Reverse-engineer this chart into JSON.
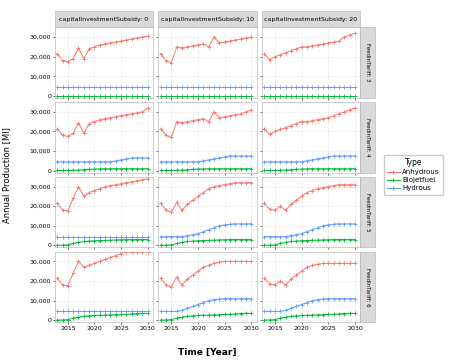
{
  "years": [
    2013,
    2014,
    2015,
    2016,
    2017,
    2018,
    2019,
    2020,
    2021,
    2022,
    2023,
    2024,
    2025,
    2026,
    2027,
    2028,
    2029,
    2030
  ],
  "col_labels": [
    "capitalInvestmentSubsidy: 0",
    "capitalInvestmentSubsidy: 10",
    "capitalInvestmentSubsidy: 20"
  ],
  "row_labels": [
    "FeedinTariff: 3",
    "FeedinTariff: 4",
    "FeedinTariff: 5",
    "FeedinTariff: 6"
  ],
  "type_colors": {
    "Anhydrous": "#f8766d",
    "Biojetfuel": "#00ba38",
    "Hydrous": "#619cff"
  },
  "xlabel": "Time [Year]",
  "ylabel": "Annual Production [Ml]",
  "data": {
    "row0": {
      "col0": {
        "Anhydrous": [
          21500,
          18000,
          17500,
          19000,
          24500,
          19000,
          24000,
          25000,
          26000,
          26500,
          27000,
          27500,
          28000,
          28500,
          29000,
          29500,
          30000,
          30500
        ],
        "Biojetfuel": [
          100,
          100,
          100,
          100,
          100,
          100,
          100,
          100,
          100,
          100,
          100,
          100,
          100,
          100,
          100,
          100,
          100,
          100
        ],
        "Hydrous": [
          4500,
          4500,
          4500,
          4500,
          4500,
          4500,
          4500,
          4500,
          4500,
          4500,
          4500,
          4500,
          4500,
          4500,
          4500,
          4500,
          4500,
          4500
        ]
      },
      "col1": {
        "Anhydrous": [
          21500,
          18000,
          17000,
          25000,
          24500,
          25000,
          25500,
          26000,
          26500,
          25000,
          30000,
          27000,
          27500,
          28000,
          28500,
          29000,
          29500,
          30000
        ],
        "Biojetfuel": [
          100,
          100,
          100,
          100,
          100,
          100,
          100,
          100,
          100,
          100,
          100,
          100,
          100,
          100,
          100,
          100,
          100,
          100
        ],
        "Hydrous": [
          4500,
          4500,
          4500,
          4500,
          4500,
          4500,
          4500,
          4500,
          4500,
          4500,
          4500,
          4500,
          4500,
          4500,
          4500,
          4500,
          4500,
          4500
        ]
      },
      "col2": {
        "Anhydrous": [
          21500,
          18500,
          20000,
          21000,
          22000,
          23000,
          24000,
          25000,
          25000,
          25500,
          26000,
          26500,
          27000,
          27500,
          28000,
          30000,
          31000,
          32000
        ],
        "Biojetfuel": [
          100,
          100,
          100,
          100,
          100,
          100,
          100,
          100,
          100,
          100,
          100,
          100,
          100,
          100,
          100,
          100,
          100,
          100
        ],
        "Hydrous": [
          4500,
          4500,
          4500,
          4500,
          4500,
          4500,
          4500,
          4500,
          4500,
          4500,
          4500,
          4500,
          4500,
          4500,
          4500,
          4500,
          4500,
          4500
        ]
      }
    },
    "row1": {
      "col0": {
        "Anhydrous": [
          21500,
          18000,
          17500,
          19000,
          24500,
          19000,
          24000,
          25000,
          26000,
          26500,
          27000,
          27500,
          28000,
          28500,
          29000,
          29500,
          30000,
          32000
        ],
        "Biojetfuel": [
          100,
          100,
          100,
          200,
          300,
          500,
          700,
          800,
          900,
          1000,
          1000,
          1000,
          1000,
          1000,
          1000,
          1000,
          1000,
          1000
        ],
        "Hydrous": [
          4500,
          4500,
          4500,
          4500,
          4500,
          4500,
          4500,
          4500,
          4500,
          4500,
          4500,
          5000,
          5500,
          6000,
          6500,
          6500,
          6500,
          6500
        ]
      },
      "col1": {
        "Anhydrous": [
          21500,
          18000,
          17000,
          25000,
          24500,
          25000,
          25500,
          26000,
          26500,
          25000,
          30000,
          27000,
          27500,
          28000,
          28500,
          29000,
          30000,
          31000
        ],
        "Biojetfuel": [
          100,
          100,
          100,
          200,
          300,
          500,
          700,
          800,
          900,
          1000,
          1000,
          1000,
          1000,
          1000,
          1000,
          1000,
          1000,
          1000
        ],
        "Hydrous": [
          4500,
          4500,
          4500,
          4500,
          4500,
          4500,
          4500,
          4500,
          5000,
          5500,
          6000,
          6500,
          7000,
          7500,
          7500,
          7500,
          7500,
          7500
        ]
      },
      "col2": {
        "Anhydrous": [
          21500,
          18500,
          20000,
          21000,
          22000,
          23000,
          24000,
          25000,
          25000,
          25500,
          26000,
          26500,
          27000,
          28000,
          29000,
          30000,
          31000,
          32000
        ],
        "Biojetfuel": [
          100,
          100,
          100,
          200,
          300,
          500,
          700,
          800,
          900,
          1000,
          1000,
          1000,
          1000,
          1000,
          1000,
          1000,
          1000,
          1000
        ],
        "Hydrous": [
          4500,
          4500,
          4500,
          4500,
          4500,
          4500,
          4500,
          4500,
          5000,
          5500,
          6000,
          6500,
          7000,
          7500,
          7500,
          7500,
          7500,
          7500
        ]
      }
    },
    "row2": {
      "col0": {
        "Anhydrous": [
          21500,
          18000,
          17500,
          24000,
          30000,
          25000,
          27000,
          28000,
          29000,
          30000,
          30500,
          31000,
          31500,
          32000,
          32500,
          33000,
          33500,
          34000
        ],
        "Biojetfuel": [
          100,
          100,
          300,
          1000,
          1500,
          2000,
          2200,
          2400,
          2500,
          2600,
          2700,
          2800,
          2900,
          3000,
          3000,
          3000,
          3000,
          3000
        ],
        "Hydrous": [
          4500,
          4500,
          4500,
          4500,
          4500,
          4500,
          4500,
          4500,
          4500,
          4500,
          4500,
          4500,
          4500,
          4500,
          4500,
          4500,
          4500,
          4500
        ]
      },
      "col1": {
        "Anhydrous": [
          21500,
          18000,
          17000,
          22000,
          18000,
          21000,
          23000,
          25000,
          27000,
          29000,
          30000,
          30500,
          31000,
          31500,
          32000,
          32000,
          32000,
          32000
        ],
        "Biojetfuel": [
          100,
          100,
          300,
          1000,
          1500,
          2000,
          2200,
          2400,
          2500,
          2600,
          2700,
          2800,
          2900,
          3000,
          3000,
          3000,
          3000,
          3000
        ],
        "Hydrous": [
          4500,
          4500,
          4500,
          4500,
          4500,
          5000,
          5500,
          6000,
          7000,
          8000,
          9000,
          10000,
          10500,
          10800,
          11000,
          11000,
          11000,
          11000
        ]
      },
      "col2": {
        "Anhydrous": [
          21500,
          18500,
          18000,
          20000,
          18000,
          21000,
          23000,
          25000,
          27000,
          28000,
          29000,
          29500,
          30000,
          30500,
          31000,
          31000,
          31000,
          31000
        ],
        "Biojetfuel": [
          100,
          100,
          300,
          1000,
          1500,
          2000,
          2200,
          2400,
          2500,
          2600,
          2700,
          2800,
          2900,
          3000,
          3000,
          3000,
          3000,
          3000
        ],
        "Hydrous": [
          4500,
          4500,
          4500,
          4500,
          4500,
          5000,
          5500,
          6000,
          7000,
          8000,
          9000,
          10000,
          10500,
          10800,
          11000,
          11000,
          11000,
          11000
        ]
      }
    },
    "row3": {
      "col0": {
        "Anhydrous": [
          21500,
          18000,
          17500,
          24000,
          30000,
          27000,
          28000,
          29000,
          30000,
          31000,
          32000,
          33000,
          34000,
          35000,
          35000,
          35000,
          35000,
          35000
        ],
        "Biojetfuel": [
          100,
          100,
          300,
          1000,
          1500,
          2000,
          2200,
          2400,
          2500,
          2600,
          2700,
          2800,
          2900,
          3000,
          3200,
          3400,
          3500,
          3500
        ],
        "Hydrous": [
          4500,
          4500,
          4500,
          4500,
          4500,
          4500,
          4500,
          4500,
          4500,
          4500,
          4500,
          4500,
          4500,
          4500,
          4500,
          4500,
          4500,
          4500
        ]
      },
      "col1": {
        "Anhydrous": [
          21500,
          18000,
          17000,
          22000,
          18000,
          21000,
          23000,
          25000,
          27000,
          28000,
          29000,
          29500,
          30000,
          30000,
          30000,
          30000,
          30000,
          30000
        ],
        "Biojetfuel": [
          100,
          100,
          300,
          1000,
          1500,
          2000,
          2200,
          2400,
          2500,
          2600,
          2700,
          2800,
          2900,
          3000,
          3200,
          3400,
          3500,
          3500
        ],
        "Hydrous": [
          4500,
          4500,
          4500,
          4500,
          5000,
          6000,
          7000,
          8000,
          9000,
          10000,
          10500,
          10800,
          11000,
          11000,
          11000,
          11000,
          11000,
          11000
        ]
      },
      "col2": {
        "Anhydrous": [
          21500,
          18500,
          18000,
          20000,
          18000,
          21000,
          23000,
          25000,
          27000,
          28000,
          28500,
          29000,
          29000,
          29000,
          29000,
          29000,
          29000,
          29000
        ],
        "Biojetfuel": [
          100,
          100,
          300,
          1000,
          1500,
          2000,
          2200,
          2400,
          2500,
          2600,
          2700,
          2800,
          2900,
          3000,
          3200,
          3400,
          3500,
          3500
        ],
        "Hydrous": [
          4500,
          4500,
          4500,
          4500,
          5000,
          6000,
          7000,
          8000,
          9000,
          10000,
          10500,
          10800,
          11000,
          11000,
          11000,
          11000,
          11000,
          11000
        ]
      }
    }
  },
  "ylim": [
    -1000,
    35000
  ],
  "yticks": [
    0,
    10000,
    20000,
    30000
  ],
  "ytick_labels": [
    "0",
    "10,000",
    "20,000",
    "30,000"
  ],
  "panel_bg": "#f5f5f5",
  "plot_bg": "#ffffff",
  "grid_color": "#e8e8e8",
  "strip_bg": "#d9d9d9",
  "strip_border": "#b0b0b0"
}
